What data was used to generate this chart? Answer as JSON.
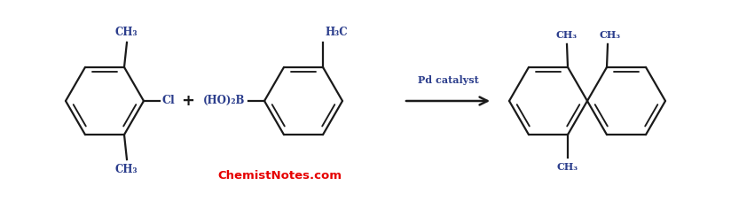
{
  "bg_color": "#ffffff",
  "line_color": "#1a1a1a",
  "label_color": "#2b3d8c",
  "watermark_color": "#e60000",
  "watermark_text": "ChemistNotes.com",
  "catalyst_text": "Pd catalyst",
  "figsize": [
    8.24,
    2.27
  ],
  "dpi": 100,
  "lw": 1.6,
  "r": 0.44,
  "xlim": [
    0,
    8.24
  ],
  "ylim": [
    0,
    2.27
  ]
}
